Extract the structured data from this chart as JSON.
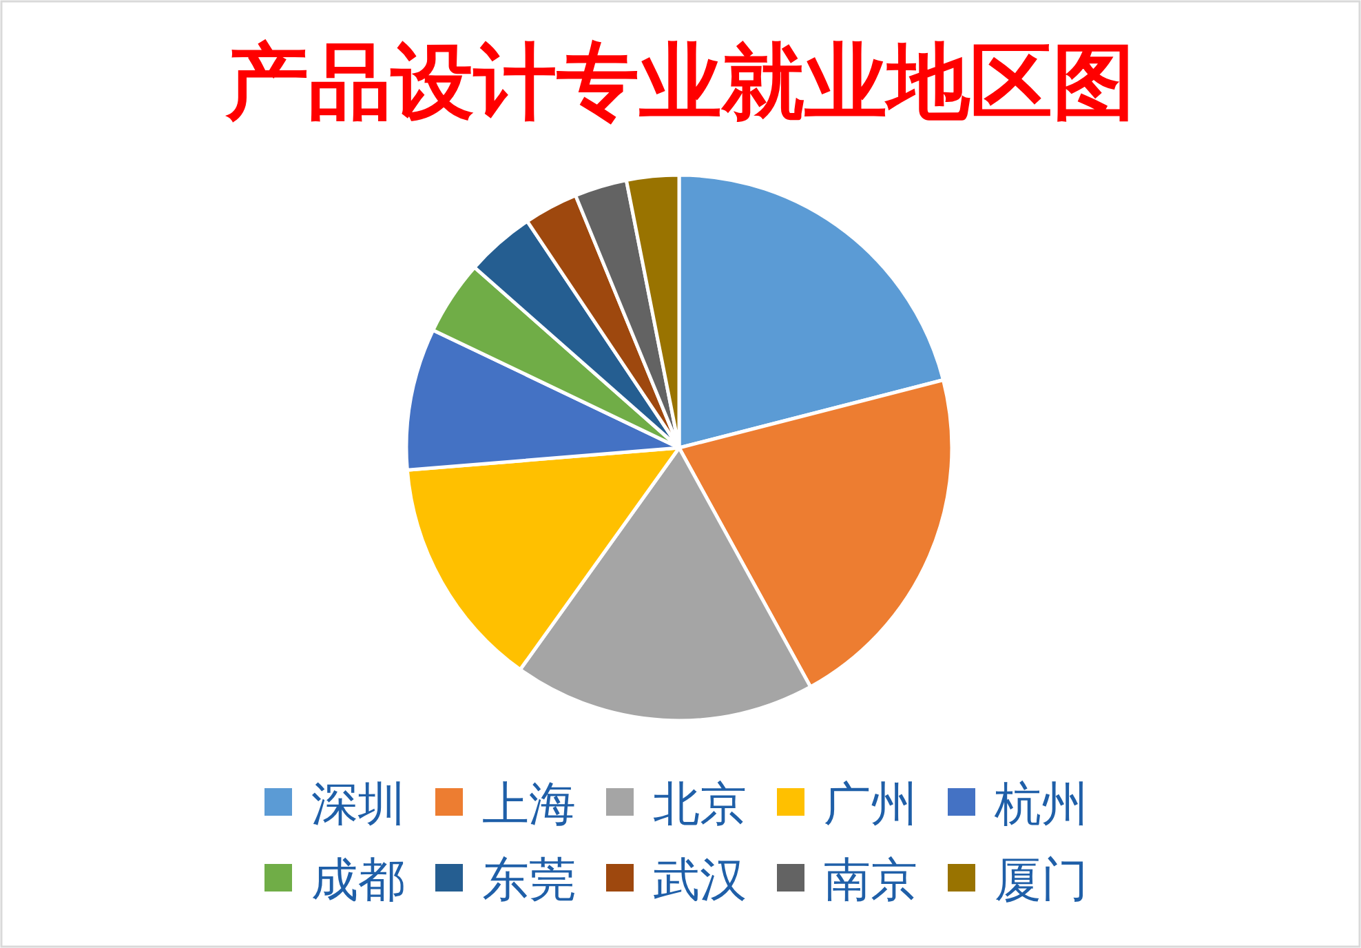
{
  "chart_data": {
    "type": "pie",
    "title": "产品设计专业就业地区图",
    "categories": [
      "深圳",
      "上海",
      "北京",
      "广州",
      "杭州",
      "成都",
      "东莞",
      "武汉",
      "南京",
      "厦门"
    ],
    "values": [
      21.0,
      21.0,
      17.9,
      13.8,
      8.4,
      4.4,
      4.1,
      3.2,
      3.1,
      3.1
    ],
    "colors": [
      "#5b9bd5",
      "#ed7d31",
      "#a5a5a5",
      "#ffc000",
      "#4472c4",
      "#70ad47",
      "#255e91",
      "#9e480e",
      "#636363",
      "#997300"
    ],
    "legend": "bottom"
  }
}
